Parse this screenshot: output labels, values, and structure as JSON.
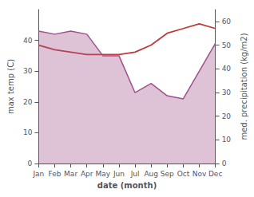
{
  "chart_data": {
    "type": "line",
    "categories": [
      "Jan",
      "Feb",
      "Mar",
      "Apr",
      "May",
      "Jun",
      "Jul",
      "Aug",
      "Sep",
      "Oct",
      "Nov",
      "Dec"
    ],
    "series": [
      {
        "type": "area",
        "color": "#a0508a",
        "values": [
          43,
          42,
          43,
          42,
          35,
          35,
          23,
          26,
          22,
          21,
          30,
          39
        ]
      },
      {
        "type": "line",
        "color": "#c0393a",
        "axis": "y2",
        "values": [
          50,
          48,
          47,
          46,
          46,
          46,
          47,
          50,
          55,
          57,
          59,
          57
        ]
      }
    ],
    "xlabel": "date (month)",
    "ylabel": "max temp (C)",
    "y2label": "med. precipitation (kg/m2)",
    "ylim": [
      0,
      50
    ],
    "yticks": [
      0,
      10,
      20,
      30,
      40
    ],
    "y2lim": [
      0,
      65
    ],
    "y2ticks": [
      0,
      10,
      20,
      30,
      40,
      50,
      60
    ],
    "grid": false
  }
}
